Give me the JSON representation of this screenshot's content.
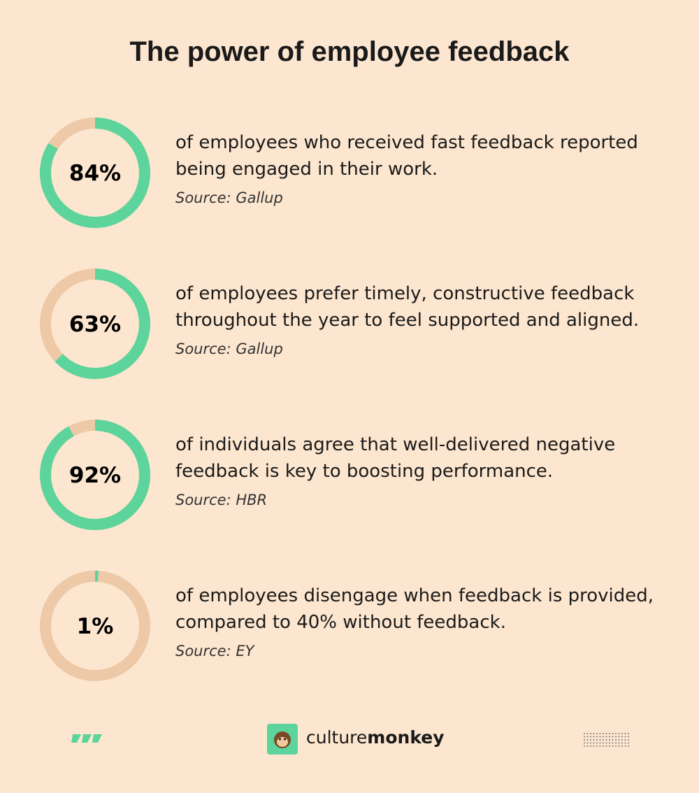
{
  "title": "The power of employee feedback",
  "chart_data": [
    {
      "type": "donut",
      "values": [
        84
      ],
      "value_labels": [
        "84%"
      ],
      "text": "of employees who received fast feedback reported being engaged in their work.",
      "source": "Source: Gallup",
      "color": "#5cd49c",
      "track_color": "#eec9a8"
    },
    {
      "type": "donut",
      "values": [
        63
      ],
      "value_labels": [
        "63%"
      ],
      "text": "of employees prefer timely, constructive feedback throughout the year to feel supported and aligned.",
      "source": "Source: Gallup",
      "color": "#5cd49c",
      "track_color": "#eec9a8"
    },
    {
      "type": "donut",
      "values": [
        92
      ],
      "value_labels": [
        "92%"
      ],
      "text": "of individuals agree that well-delivered negative feedback is key to boosting performance.",
      "source": "Source: HBR",
      "color": "#5cd49c",
      "track_color": "#eec9a8"
    },
    {
      "type": "donut",
      "values": [
        1
      ],
      "value_labels": [
        "1%"
      ],
      "text": "of employees disengage when feedback is provided, compared to 40% without feedback.",
      "source": "Source: EY",
      "color": "#5cd49c",
      "track_color": "#eec9a8"
    }
  ],
  "footer": {
    "brand_prefix": "culture",
    "brand_suffix": "monkey"
  }
}
